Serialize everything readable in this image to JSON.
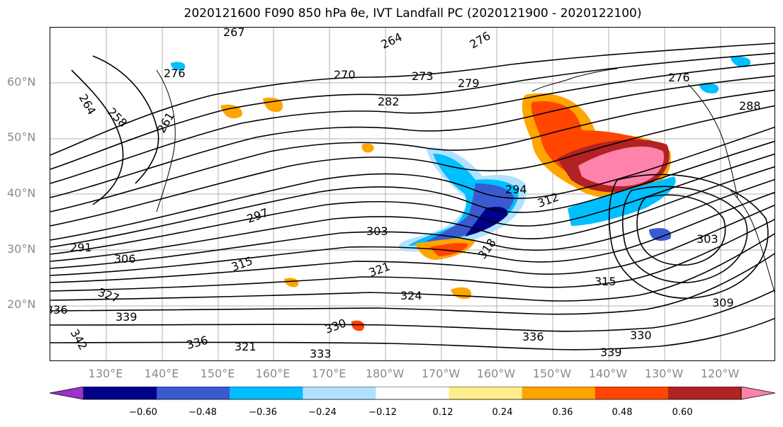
{
  "title": "2020121600 F090 850 hPa θe, IVT Landfall PC (2020121900 - 2020122100)",
  "lat_labels": [
    "60°N",
    "50°N",
    "40°N",
    "30°N",
    "20°N"
  ],
  "lon_labels": [
    "130°E",
    "140°E",
    "150°E",
    "160°E",
    "170°E",
    "180°W",
    "170°W",
    "160°W",
    "150°W",
    "140°W",
    "130°W",
    "120°W"
  ],
  "contour_labels": [
    "267",
    "264",
    "270",
    "273",
    "276",
    "279",
    "276",
    "282",
    "288",
    "258",
    "261",
    "264",
    "276",
    "291",
    "294",
    "297",
    "303",
    "306",
    "312",
    "315",
    "315",
    "318",
    "321",
    "324",
    "327",
    "330",
    "330",
    "333",
    "336",
    "336",
    "339",
    "339",
    "303",
    "309",
    "342",
    "336",
    "321"
  ],
  "colorbar": {
    "colors": [
      "#9a32cd",
      "#00008b",
      "#3a5bd0",
      "#00bfff",
      "#b0e2ff",
      "#ffffff",
      "#ffec8b",
      "#ffa500",
      "#ff4500",
      "#b22222",
      "#ff82ab"
    ],
    "ticks": [
      "−0.60",
      "−0.48",
      "−0.36",
      "−0.24",
      "−0.12",
      "0.12",
      "0.24",
      "0.36",
      "0.48",
      "0.60"
    ]
  }
}
